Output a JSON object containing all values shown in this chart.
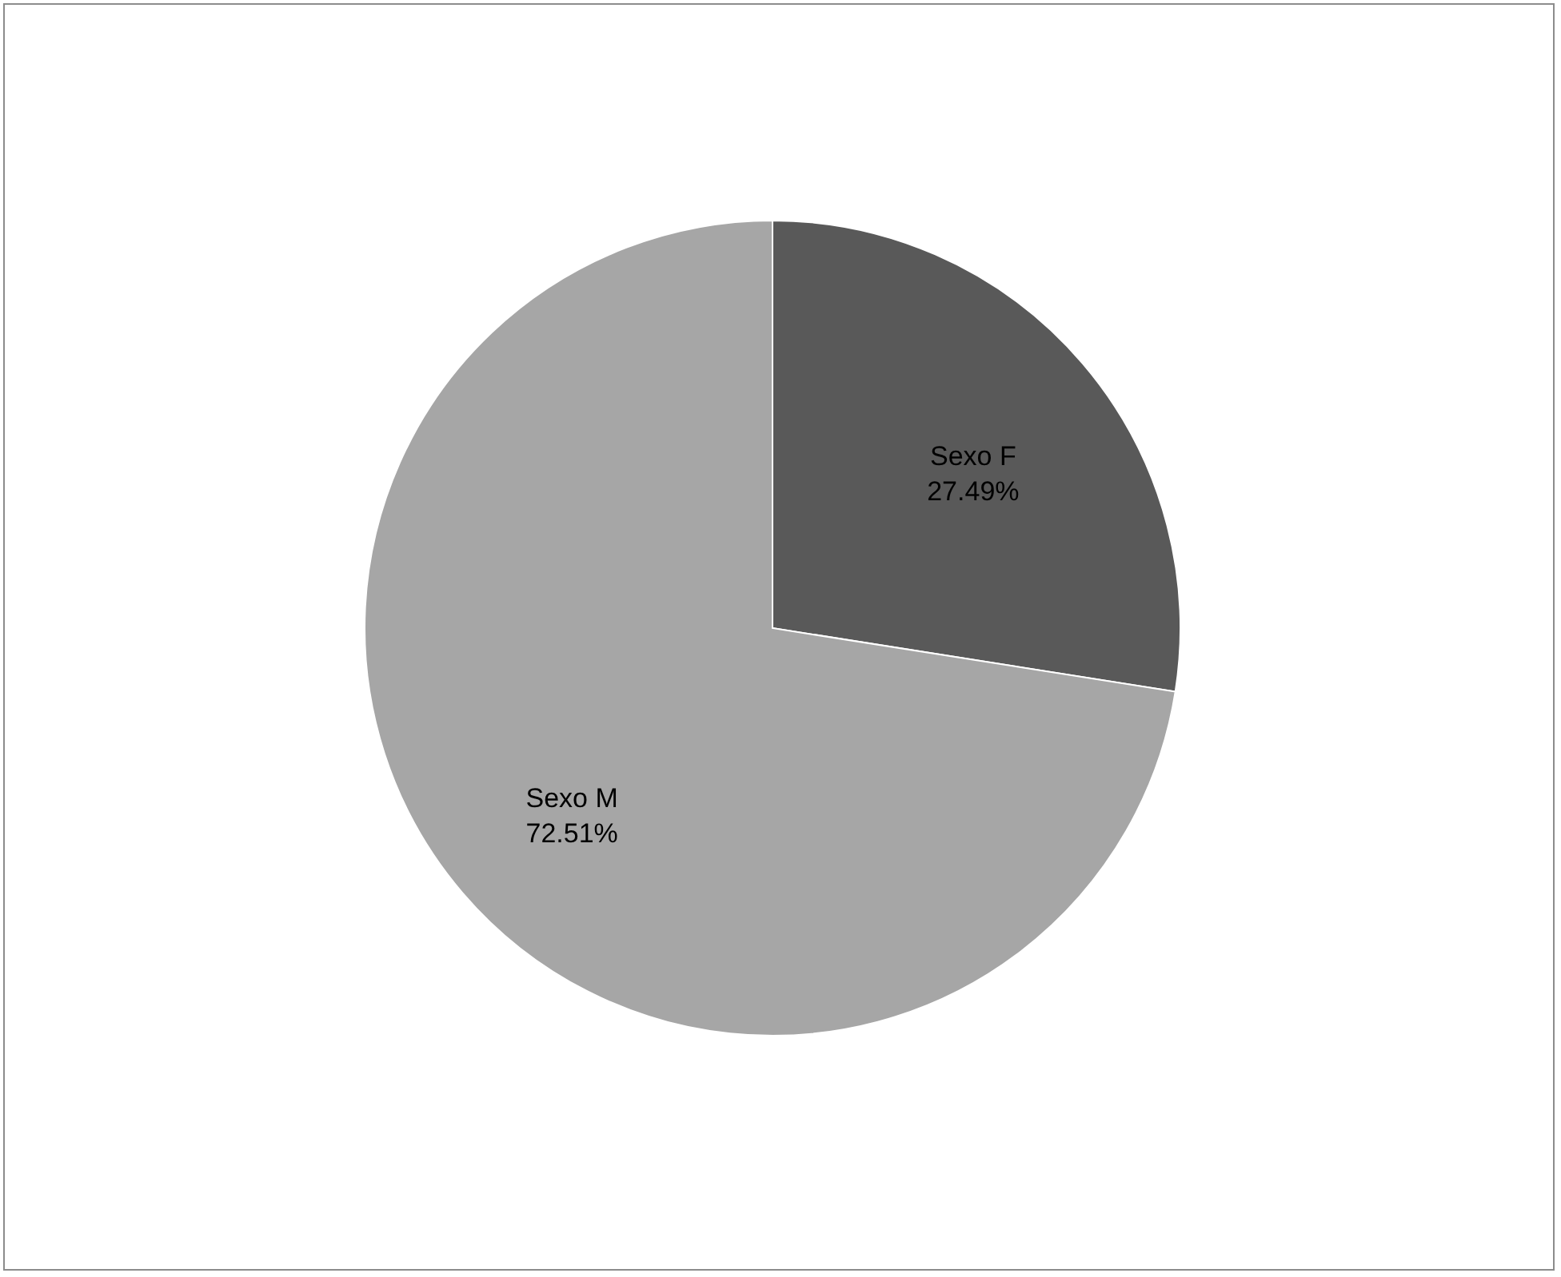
{
  "chart_data": {
    "type": "pie",
    "categories": [
      "Sexo F",
      "Sexo M"
    ],
    "values": [
      27.49,
      72.51
    ],
    "colors": [
      "#595959",
      "#a6a6a6"
    ],
    "value_labels": [
      "27.49%",
      "72.51%"
    ],
    "legend": false
  }
}
